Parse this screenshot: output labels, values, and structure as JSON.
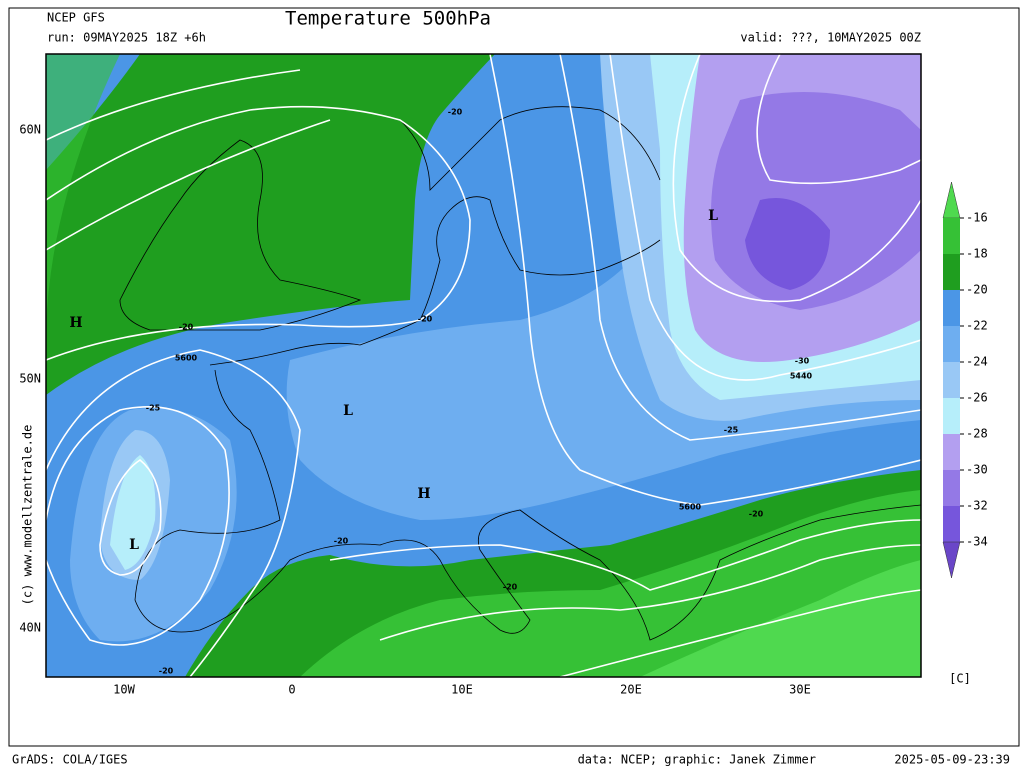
{
  "header": {
    "model": "NCEP GFS",
    "title": "Temperature 500hPa",
    "run": "run: 09MAY2025 18Z +6h",
    "valid": "valid: ???, 10MAY2025 00Z"
  },
  "map": {
    "lat_labels": [
      "60N",
      "50N",
      "40N"
    ],
    "lon_labels": [
      "10W",
      "0",
      "10E",
      "20E",
      "30E"
    ],
    "temperature_labels": [
      "-20",
      "-20",
      "-20",
      "-20",
      "-20",
      "-20",
      "-20",
      "-25",
      "-25",
      "-30"
    ],
    "height_labels": [
      "5600",
      "5600",
      "5440"
    ],
    "pressure_centers": [
      "H",
      "H",
      "L",
      "L",
      "L"
    ],
    "credit": "(c) www.modellzentrale.de"
  },
  "colorbar": {
    "ticks": [
      -16,
      -18,
      -20,
      -22,
      -24,
      -26,
      -28,
      -30,
      -32,
      -34
    ],
    "colors": [
      "#4fd94f",
      "#36c136",
      "#1f9e1f",
      "#4b96e6",
      "#6eaef0",
      "#99c8f5",
      "#b6eefa",
      "#b39ff0",
      "#9479e6",
      "#7656dc",
      "#6a46c8"
    ],
    "unit": "[C]"
  },
  "footer": {
    "left": "GrADS: COLA/IGES",
    "center": "data: NCEP; graphic: Janek Zimmer",
    "right": "2025-05-09-23:39"
  }
}
